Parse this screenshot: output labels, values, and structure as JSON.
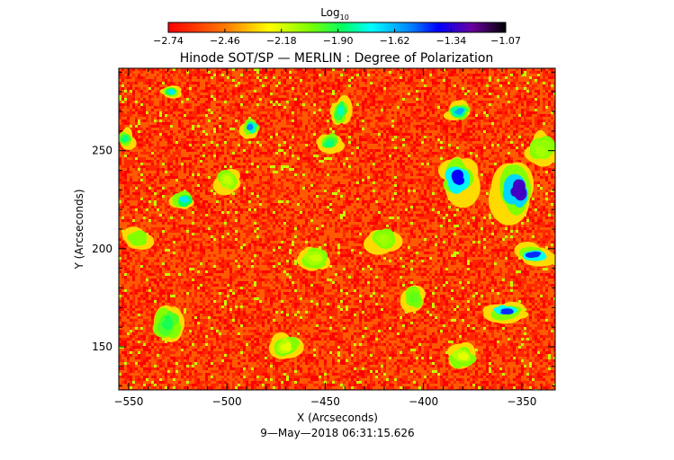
{
  "chart_data": {
    "type": "heatmap",
    "title": "Hinode SOT/SP — MERLIN : Degree of Polarization",
    "xlabel": "X (Arcseconds)",
    "ylabel": "Y (Arcseconds)",
    "xlim": [
      -555,
      -333
    ],
    "ylim": [
      128,
      292
    ],
    "x_ticks": [
      -550,
      -500,
      -450,
      -400,
      -350
    ],
    "x_tick_labels": [
      "−550",
      "−500",
      "−450",
      "−400",
      "−350"
    ],
    "y_ticks": [
      150,
      200,
      250
    ],
    "y_tick_labels": [
      "150",
      "200",
      "250"
    ],
    "colorbar": {
      "label_base": "Log",
      "label_sub": "10",
      "min": -2.74,
      "max": -1.07,
      "ticks": [
        -2.74,
        -2.46,
        -2.18,
        -1.9,
        -1.62,
        -1.34,
        -1.07
      ],
      "tick_labels": [
        "−2.74",
        "−2.46",
        "−2.18",
        "−1.90",
        "−1.62",
        "−1.34",
        "−1.07"
      ],
      "colormap": "rainbow (red → yellow → green → cyan → blue → purple → black)"
    },
    "background_value": -2.65,
    "regions": [
      {
        "x": -352,
        "y": 230,
        "rx": 7,
        "ry": 9,
        "value": -1.3
      },
      {
        "x": -382,
        "y": 236,
        "rx": 6,
        "ry": 7,
        "value": -1.4
      },
      {
        "x": -344,
        "y": 197,
        "rx": 6,
        "ry": 3,
        "value": -1.45
      },
      {
        "x": -358,
        "y": 168,
        "rx": 6,
        "ry": 3,
        "value": -1.45
      },
      {
        "x": -382,
        "y": 270,
        "rx": 4,
        "ry": 3,
        "value": -1.6
      },
      {
        "x": -488,
        "y": 262,
        "rx": 3,
        "ry": 3,
        "value": -1.55
      },
      {
        "x": -522,
        "y": 225,
        "rx": 4,
        "ry": 3,
        "value": -1.7
      },
      {
        "x": -442,
        "y": 270,
        "rx": 3,
        "ry": 5,
        "value": -1.8
      },
      {
        "x": -448,
        "y": 254,
        "rx": 4,
        "ry": 3,
        "value": -1.85
      },
      {
        "x": -528,
        "y": 280,
        "rx": 3,
        "ry": 2,
        "value": -1.7
      },
      {
        "x": -530,
        "y": 162,
        "rx": 5,
        "ry": 6,
        "value": -1.9
      },
      {
        "x": -552,
        "y": 256,
        "rx": 3,
        "ry": 3,
        "value": -1.85
      },
      {
        "x": -545,
        "y": 205,
        "rx": 4,
        "ry": 3,
        "value": -2.05
      },
      {
        "x": -405,
        "y": 175,
        "rx": 4,
        "ry": 4,
        "value": -2.0
      },
      {
        "x": -420,
        "y": 205,
        "rx": 5,
        "ry": 4,
        "value": -2.1
      },
      {
        "x": -455,
        "y": 195,
        "rx": 5,
        "ry": 4,
        "value": -2.15
      },
      {
        "x": -500,
        "y": 235,
        "rx": 4,
        "ry": 4,
        "value": -2.15
      },
      {
        "x": -470,
        "y": 150,
        "rx": 5,
        "ry": 4,
        "value": -2.2
      },
      {
        "x": -380,
        "y": 145,
        "rx": 5,
        "ry": 4,
        "value": -2.2
      },
      {
        "x": -340,
        "y": 250,
        "rx": 5,
        "ry": 5,
        "value": -2.1
      }
    ]
  },
  "footer": {
    "timestamp": "9—May—2018 06:31:15.626"
  }
}
